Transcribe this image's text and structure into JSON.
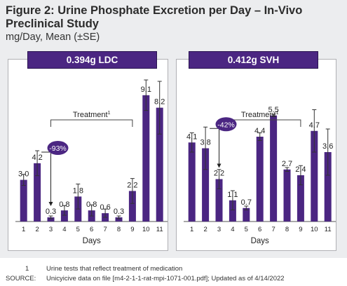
{
  "figure": {
    "title": "Figure 2: Urine Phosphate Excretion per Day – In-Vivo Preclinical Study",
    "subtitle": "mg/Day, Mean (±SE)"
  },
  "chart_data": [
    {
      "type": "bar",
      "title": "0.394g LDC",
      "xlabel": "Days",
      "categories": [
        "1",
        "2",
        "3",
        "4",
        "5",
        "6",
        "7",
        "8",
        "9",
        "10",
        "11"
      ],
      "values": [
        3.0,
        4.2,
        0.3,
        0.8,
        1.8,
        0.8,
        0.6,
        0.3,
        2.2,
        9.1,
        8.2
      ],
      "value_labels": [
        "3.0",
        "4.2",
        "0.3",
        "0.8",
        "1.8",
        "0.8",
        "0.6",
        "0.3",
        "2.2",
        "9.1",
        "8.2"
      ],
      "error": [
        0.4,
        0.9,
        0.1,
        0.35,
        0.9,
        0.4,
        0.3,
        0.1,
        0.9,
        1.1,
        1.9
      ],
      "ylim": [
        0,
        10
      ],
      "treatment_label": "Treatment",
      "treatment_superscript": "1",
      "treatment_span": [
        3,
        9
      ],
      "change_badge": "-93%",
      "change_from_day": 2,
      "change_to_day": 3,
      "bar_color": "#4b2682"
    },
    {
      "type": "bar",
      "title": "0.412g SVH",
      "xlabel": "Days",
      "categories": [
        "1",
        "2",
        "3",
        "4",
        "5",
        "6",
        "7",
        "8",
        "9",
        "10",
        "11"
      ],
      "values": [
        4.1,
        3.8,
        2.2,
        1.1,
        0.7,
        4.4,
        5.5,
        2.7,
        2.4,
        4.7,
        3.6
      ],
      "value_labels": [
        "4.1",
        "3.8",
        "2.2",
        "1.1",
        "0.7",
        "4.4",
        "5.5",
        "2.7",
        "2.4",
        "4.7",
        "3.6"
      ],
      "error": [
        0.5,
        1.1,
        0.5,
        0.5,
        0.1,
        0.2,
        0.05,
        0.1,
        0.5,
        1.1,
        1.2
      ],
      "ylim": [
        0,
        7.2
      ],
      "treatment_label": "Treatment",
      "treatment_superscript": "1",
      "treatment_span": [
        3,
        9
      ],
      "change_badge": "-42%",
      "change_from_day": 2,
      "change_to_day": 3,
      "bar_color": "#4b2682"
    }
  ],
  "footnotes": {
    "note_number": "1",
    "note_text": "Urine tests that reflect treatment of medication",
    "source_label": "SOURCE:",
    "source_text": "Unicyicive data on file [m4-2-1-1-rat-mpi-1071-001.pdf]; Updated as of 4/14/2022"
  }
}
